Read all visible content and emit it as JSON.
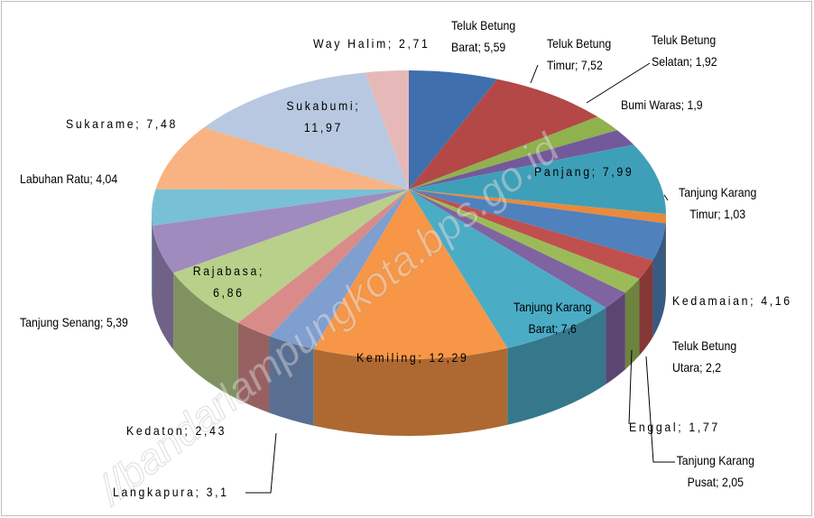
{
  "chart_data": {
    "type": "pie",
    "categories": [
      "Teluk Betung Barat",
      "Teluk Betung Timur",
      "Teluk Betung Selatan",
      "Bumi Waras",
      "Panjang",
      "Tanjung Karang Timur",
      "Kedamaian",
      "Teluk Betung Utara",
      "Enggal",
      "Tanjung Karang Pusat",
      "Tanjung Karang Barat",
      "Kemiling",
      "Langkapura",
      "Kedaton",
      "Rajabasa",
      "Tanjung Senang",
      "Labuhan Ratu",
      "Sukarame",
      "Sukabumi",
      "Way Halim"
    ],
    "values": [
      5.59,
      7.52,
      1.92,
      1.9,
      7.99,
      1.03,
      4.16,
      2.2,
      1.77,
      2.05,
      7.6,
      12.29,
      3.1,
      2.43,
      6.86,
      5.39,
      4.04,
      7.48,
      11.97,
      2.71
    ],
    "value_labels": [
      "5,59",
      "7,52",
      "1,92",
      "1,9",
      "7,99",
      "1,03",
      "4,16",
      "2,2",
      "1,77",
      "2,05",
      "7,6",
      "12,29",
      "3,1",
      "2,43",
      "6,86",
      "5,39",
      "4,04",
      "7,48",
      "11,97",
      "2,71"
    ],
    "colors": [
      "#3f6fad",
      "#b34846",
      "#8fb14e",
      "#74599a",
      "#3e9fb9",
      "#e98a3a",
      "#4f81bd",
      "#c0504d",
      "#9bbb59",
      "#8064a2",
      "#4bacc6",
      "#f79646",
      "#7f9fd0",
      "#d98b8a",
      "#b8d08a",
      "#a08bbf",
      "#78c0d4",
      "#f9b282",
      "#b8c8e0",
      "#e6b9b8"
    ],
    "separator": "; ",
    "watermark": "//bandarlampungkota.bps.go.id"
  }
}
